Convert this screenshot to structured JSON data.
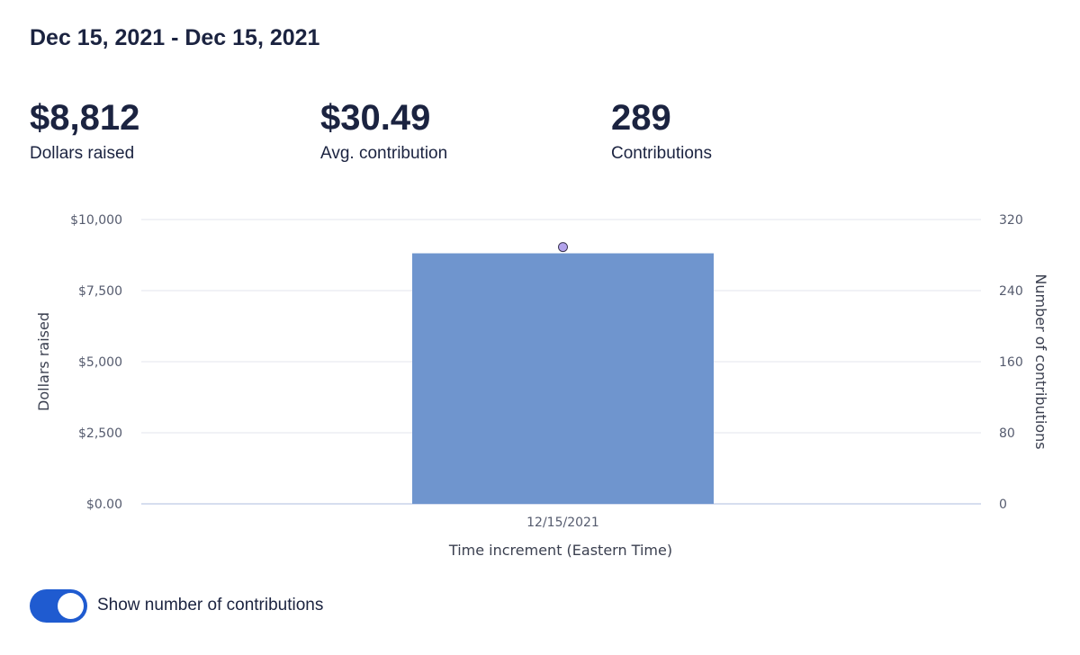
{
  "header": {
    "date_range": "Dec 15, 2021 - Dec 15, 2021"
  },
  "stats": [
    {
      "value": "$8,812",
      "label": "Dollars raised"
    },
    {
      "value": "$30.49",
      "label": "Avg. contribution"
    },
    {
      "value": "289",
      "label": "Contributions"
    }
  ],
  "toggle": {
    "label": "Show number of contributions",
    "on": true
  },
  "colors": {
    "bar": "#6f95ce",
    "point": "#b3a3ec",
    "toggle": "#1f5bd0",
    "text": "#1b2340"
  },
  "chart_data": {
    "type": "bar",
    "categories": [
      "12/15/2021"
    ],
    "series": [
      {
        "values": [
          8812
        ],
        "axis": "left",
        "mark": "bar"
      },
      {
        "values": [
          289
        ],
        "axis": "right",
        "mark": "point"
      }
    ],
    "ylabel": "Dollars raised",
    "y2label": "Number of contributions",
    "xlabel": "Time increment (Eastern Time)",
    "ylim": [
      0,
      10000
    ],
    "y2lim": [
      0,
      320
    ],
    "yticks": [
      "$0.00",
      "$2,500",
      "$5,000",
      "$7,500",
      "$10,000"
    ],
    "y2ticks": [
      "0",
      "80",
      "160",
      "240",
      "320"
    ],
    "grid": true
  }
}
